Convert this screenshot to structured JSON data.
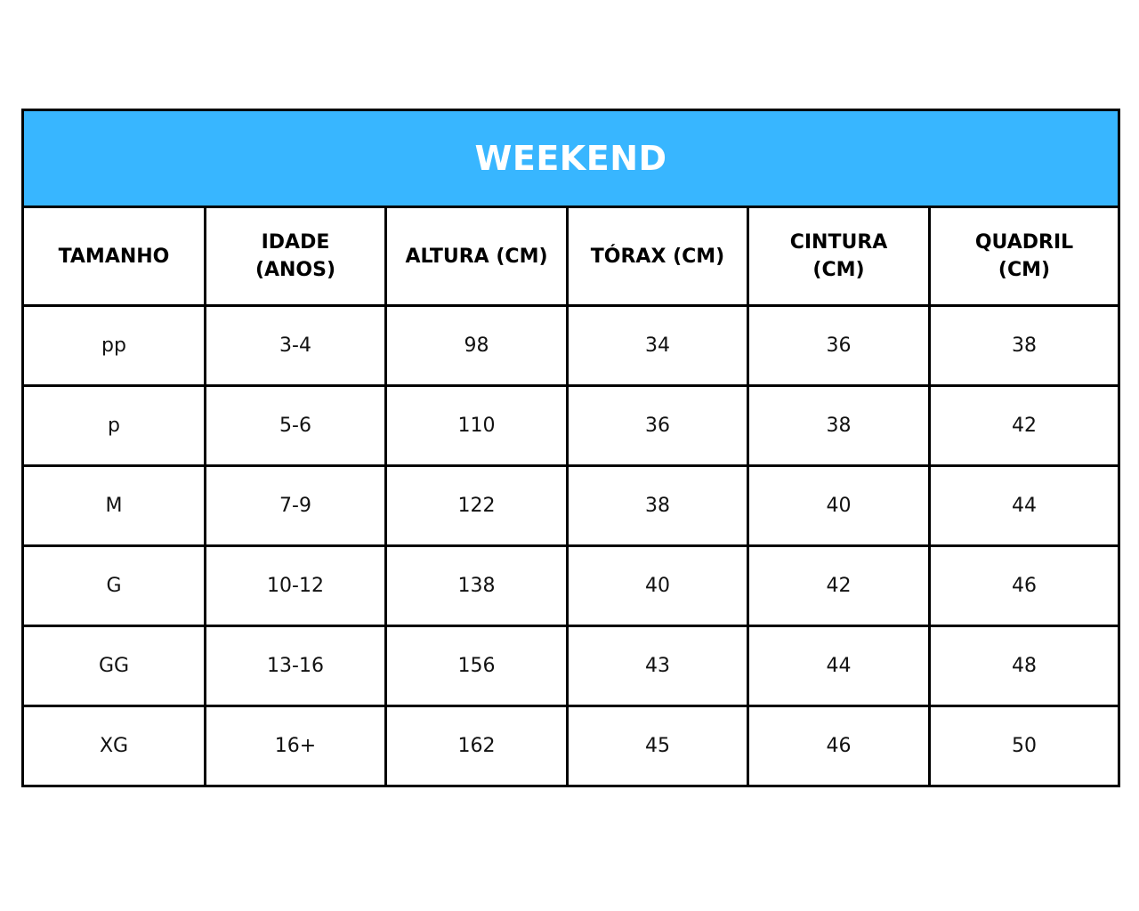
{
  "title": "WEEKEND",
  "colors": {
    "header_bg": "#38b6ff",
    "header_text": "#ffffff",
    "border": "#000000"
  },
  "columns": [
    "TAMANHO",
    "IDADE (ANOS)",
    "ALTURA (CM)",
    "TÓRAX (CM)",
    "CINTURA (CM)",
    "QUADRIL (CM)"
  ],
  "rows": [
    [
      "pp",
      "3-4",
      "98",
      "34",
      "36",
      "38"
    ],
    [
      "p",
      "5-6",
      "110",
      "36",
      "38",
      "42"
    ],
    [
      "M",
      "7-9",
      "122",
      "38",
      "40",
      "44"
    ],
    [
      "G",
      "10-12",
      "138",
      "40",
      "42",
      "46"
    ],
    [
      "GG",
      "13-16",
      "156",
      "43",
      "44",
      "48"
    ],
    [
      "XG",
      "16+",
      "162",
      "45",
      "46",
      "50"
    ]
  ]
}
